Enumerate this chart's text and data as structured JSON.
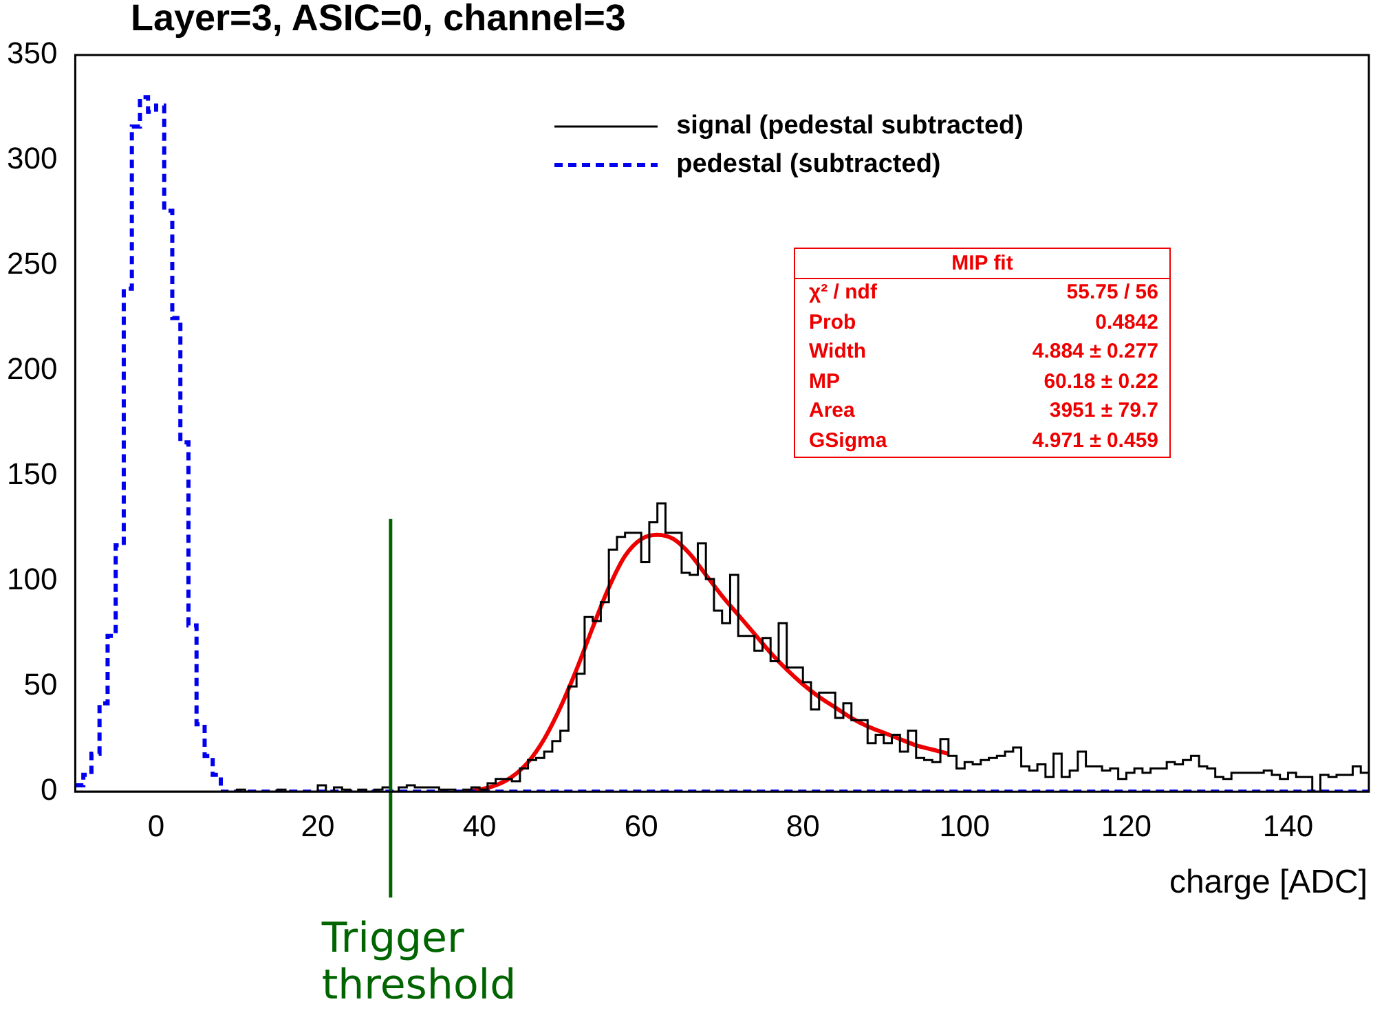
{
  "chart_data": {
    "type": "histogram",
    "title": "Layer=3, ASIC=0, channel=3",
    "xlabel": "charge [ADC]",
    "bins": [
      -10,
      -9,
      -8,
      -7,
      -6,
      -5,
      -4,
      -3,
      -2,
      -1,
      0,
      1,
      2,
      3,
      4,
      5,
      6,
      7,
      8,
      9,
      10,
      11,
      12,
      13,
      14,
      15,
      16,
      17,
      18,
      19,
      20,
      21,
      22,
      23,
      24,
      25,
      26,
      27,
      28,
      29,
      30,
      31,
      32,
      33,
      34,
      35,
      36,
      37,
      38,
      39,
      40,
      41,
      42,
      43,
      44,
      45,
      46,
      47,
      48,
      49,
      50,
      51,
      52,
      53,
      54,
      55,
      56,
      57,
      58,
      59,
      60,
      61,
      62,
      63,
      64,
      65,
      66,
      67,
      68,
      69,
      70,
      71,
      72,
      73,
      74,
      75,
      76,
      77,
      78,
      79,
      80,
      81,
      82,
      83,
      84,
      85,
      86,
      87,
      88,
      89,
      90,
      91,
      92,
      93,
      94,
      95,
      96,
      97,
      98,
      99,
      100,
      101,
      102,
      103,
      104,
      105,
      106,
      107,
      108,
      109,
      110,
      111,
      112,
      113,
      114,
      115,
      116,
      117,
      118,
      119,
      120,
      121,
      122,
      123,
      124,
      125,
      126,
      127,
      128,
      129,
      130,
      131,
      132,
      133,
      134,
      135,
      136,
      137,
      138,
      139,
      140,
      141,
      142,
      143,
      144,
      145,
      146,
      147,
      148,
      149,
      150
    ],
    "series": [
      {
        "name": "signal (pedestal subtracted)",
        "color": "#000000",
        "line_style": "solid",
        "values": [
          0,
          0,
          0,
          0,
          0,
          0,
          0,
          0,
          0,
          0,
          0,
          0,
          0,
          0,
          0,
          0,
          0,
          0,
          0,
          0,
          1,
          0,
          0,
          0,
          0,
          1,
          0,
          0,
          0,
          0,
          3,
          0,
          2,
          1,
          0,
          1,
          0,
          1,
          2,
          0,
          2,
          3,
          2,
          2,
          2,
          1,
          1,
          0,
          1,
          2,
          1,
          4,
          6,
          6,
          5,
          11,
          15,
          16,
          19,
          24,
          29,
          50,
          56,
          83,
          81,
          90,
          115,
          121,
          123,
          123,
          109,
          128,
          137,
          123,
          123,
          104,
          103,
          118,
          101,
          86,
          80,
          103,
          74,
          74,
          67,
          73,
          62,
          80,
          59,
          59,
          52,
          39,
          47,
          47,
          35,
          42,
          34,
          34,
          23,
          27,
          23,
          27,
          19,
          29,
          16,
          15,
          14,
          25,
          17,
          11,
          14,
          13,
          15,
          16,
          17,
          19,
          21,
          12,
          10,
          13,
          7,
          18,
          7,
          10,
          19,
          12,
          12,
          10,
          11,
          6,
          9,
          11,
          9,
          11,
          11,
          14,
          13,
          15,
          17,
          12,
          11,
          7,
          6,
          9,
          9,
          9,
          9,
          10,
          8,
          6,
          9,
          7,
          7,
          0,
          8,
          7,
          8,
          8,
          12,
          9
        ]
      },
      {
        "name": "pedestal (subtracted)",
        "color": "#0000ee",
        "line_style": "dashed",
        "values": [
          3,
          8,
          18,
          42,
          74,
          117,
          239,
          316,
          330,
          323,
          326,
          276,
          225,
          166,
          79,
          32,
          17,
          8,
          0,
          0,
          0,
          0,
          0,
          0,
          0,
          0,
          0,
          0,
          0,
          0,
          0,
          0,
          0,
          0,
          0,
          0,
          0,
          0,
          0,
          0,
          0,
          0,
          0,
          0,
          0,
          0,
          0,
          0,
          0,
          0,
          0,
          0,
          0,
          0,
          0,
          0,
          0,
          0,
          0,
          0,
          0,
          0,
          0,
          0,
          0,
          0,
          0,
          0,
          0,
          0,
          0,
          0,
          0,
          0,
          0,
          0,
          0,
          0,
          0,
          0,
          0,
          0,
          0,
          0,
          0,
          0,
          0,
          0,
          0,
          0,
          0,
          0,
          0,
          0,
          0,
          0,
          0,
          0,
          0,
          0,
          0,
          0,
          0,
          0,
          0,
          0,
          0,
          0,
          0,
          0,
          0,
          0,
          0,
          0,
          0,
          0,
          0,
          0,
          0,
          0,
          0,
          0,
          0,
          0,
          0,
          0,
          0,
          0,
          0,
          0,
          0,
          0,
          0,
          0,
          0,
          0,
          0,
          0,
          0,
          0,
          0,
          0,
          0,
          0,
          0,
          0,
          0,
          0,
          0,
          0,
          0,
          0,
          0,
          0,
          0,
          0,
          0,
          0,
          0,
          0
        ]
      },
      {
        "type": "line",
        "color": "#ee0000",
        "x": [
          38,
          40,
          42,
          44,
          46,
          48,
          50,
          52,
          54,
          56,
          58,
          60,
          62,
          64,
          66,
          68,
          70,
          72,
          74,
          76,
          78,
          80,
          82,
          84,
          86,
          88,
          90,
          92,
          94,
          96,
          98
        ],
        "values": [
          0,
          1,
          3,
          7,
          14,
          25,
          40,
          58,
          78,
          97,
          112,
          120,
          122,
          120,
          113,
          103,
          93,
          84,
          75,
          66,
          58,
          51,
          45,
          40,
          35,
          31,
          28,
          25,
          22,
          20,
          18
        ]
      }
    ],
    "xlim": [
      -10,
      150
    ],
    "xticks": [
      0,
      20,
      40,
      60,
      80,
      100,
      120,
      140
    ],
    "ylim": [
      0,
      350
    ],
    "yticks": [
      0,
      50,
      100,
      150,
      200,
      250,
      300,
      350
    ],
    "legend": "top right",
    "ref_lines": [
      {
        "axis": "x",
        "value": 29,
        "label": "Trigger threshold",
        "color": "#006400"
      }
    ],
    "annotations": [
      "MIP fit",
      "χ² / ndf",
      "55.75 / 56",
      "Prob",
      "0.4842",
      "Width",
      "4.884 ± 0.277",
      "MP",
      "60.18 ± 0.22",
      "Area",
      "3951 ± 79.7",
      "GSigma",
      "4.971 ± 0.459"
    ]
  }
}
